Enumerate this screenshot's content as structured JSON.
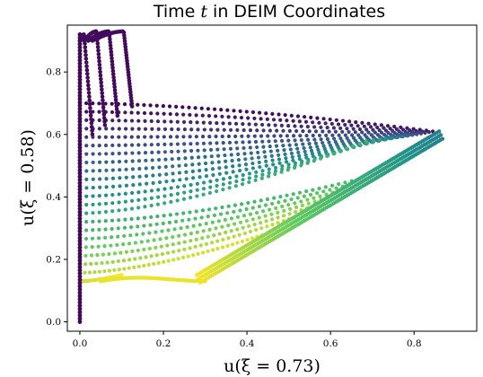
{
  "chart_data": {
    "type": "scatter",
    "title": "Time t in DEIM Coordinates",
    "xlabel": "u(ξ = 0.73)",
    "ylabel": "u(ξ = 0.58)",
    "xlim": [
      -0.03,
      0.95
    ],
    "ylim": [
      -0.03,
      0.95
    ],
    "xticks": [
      "0.0",
      "0.2",
      "0.4",
      "0.6",
      "0.8"
    ],
    "yticks": [
      "0.0",
      "0.2",
      "0.4",
      "0.6",
      "0.8"
    ],
    "grid": false,
    "legend": "none",
    "colormap": [
      "#440154",
      "#3b528b",
      "#21918c",
      "#5ec962",
      "#fde725"
    ],
    "color_encodes": "time t",
    "series_count": 22,
    "trajectory_features": {
      "vertical_column_x": 0.0,
      "vertical_column_y_range": [
        0.0,
        0.92
      ],
      "top_loop_peaks": [
        [
          0.01,
          0.92
        ],
        [
          0.04,
          0.93
        ],
        [
          0.07,
          0.93
        ],
        [
          0.105,
          0.93
        ]
      ],
      "rightmost_point": [
        0.86,
        0.61
      ],
      "late_time_ridge": [
        [
          0.28,
          0.15
        ],
        [
          0.86,
          0.61
        ]
      ],
      "bottom_tail_end": [
        [
          0.05,
          0.13
        ],
        [
          0.3,
          0.13
        ]
      ]
    }
  }
}
